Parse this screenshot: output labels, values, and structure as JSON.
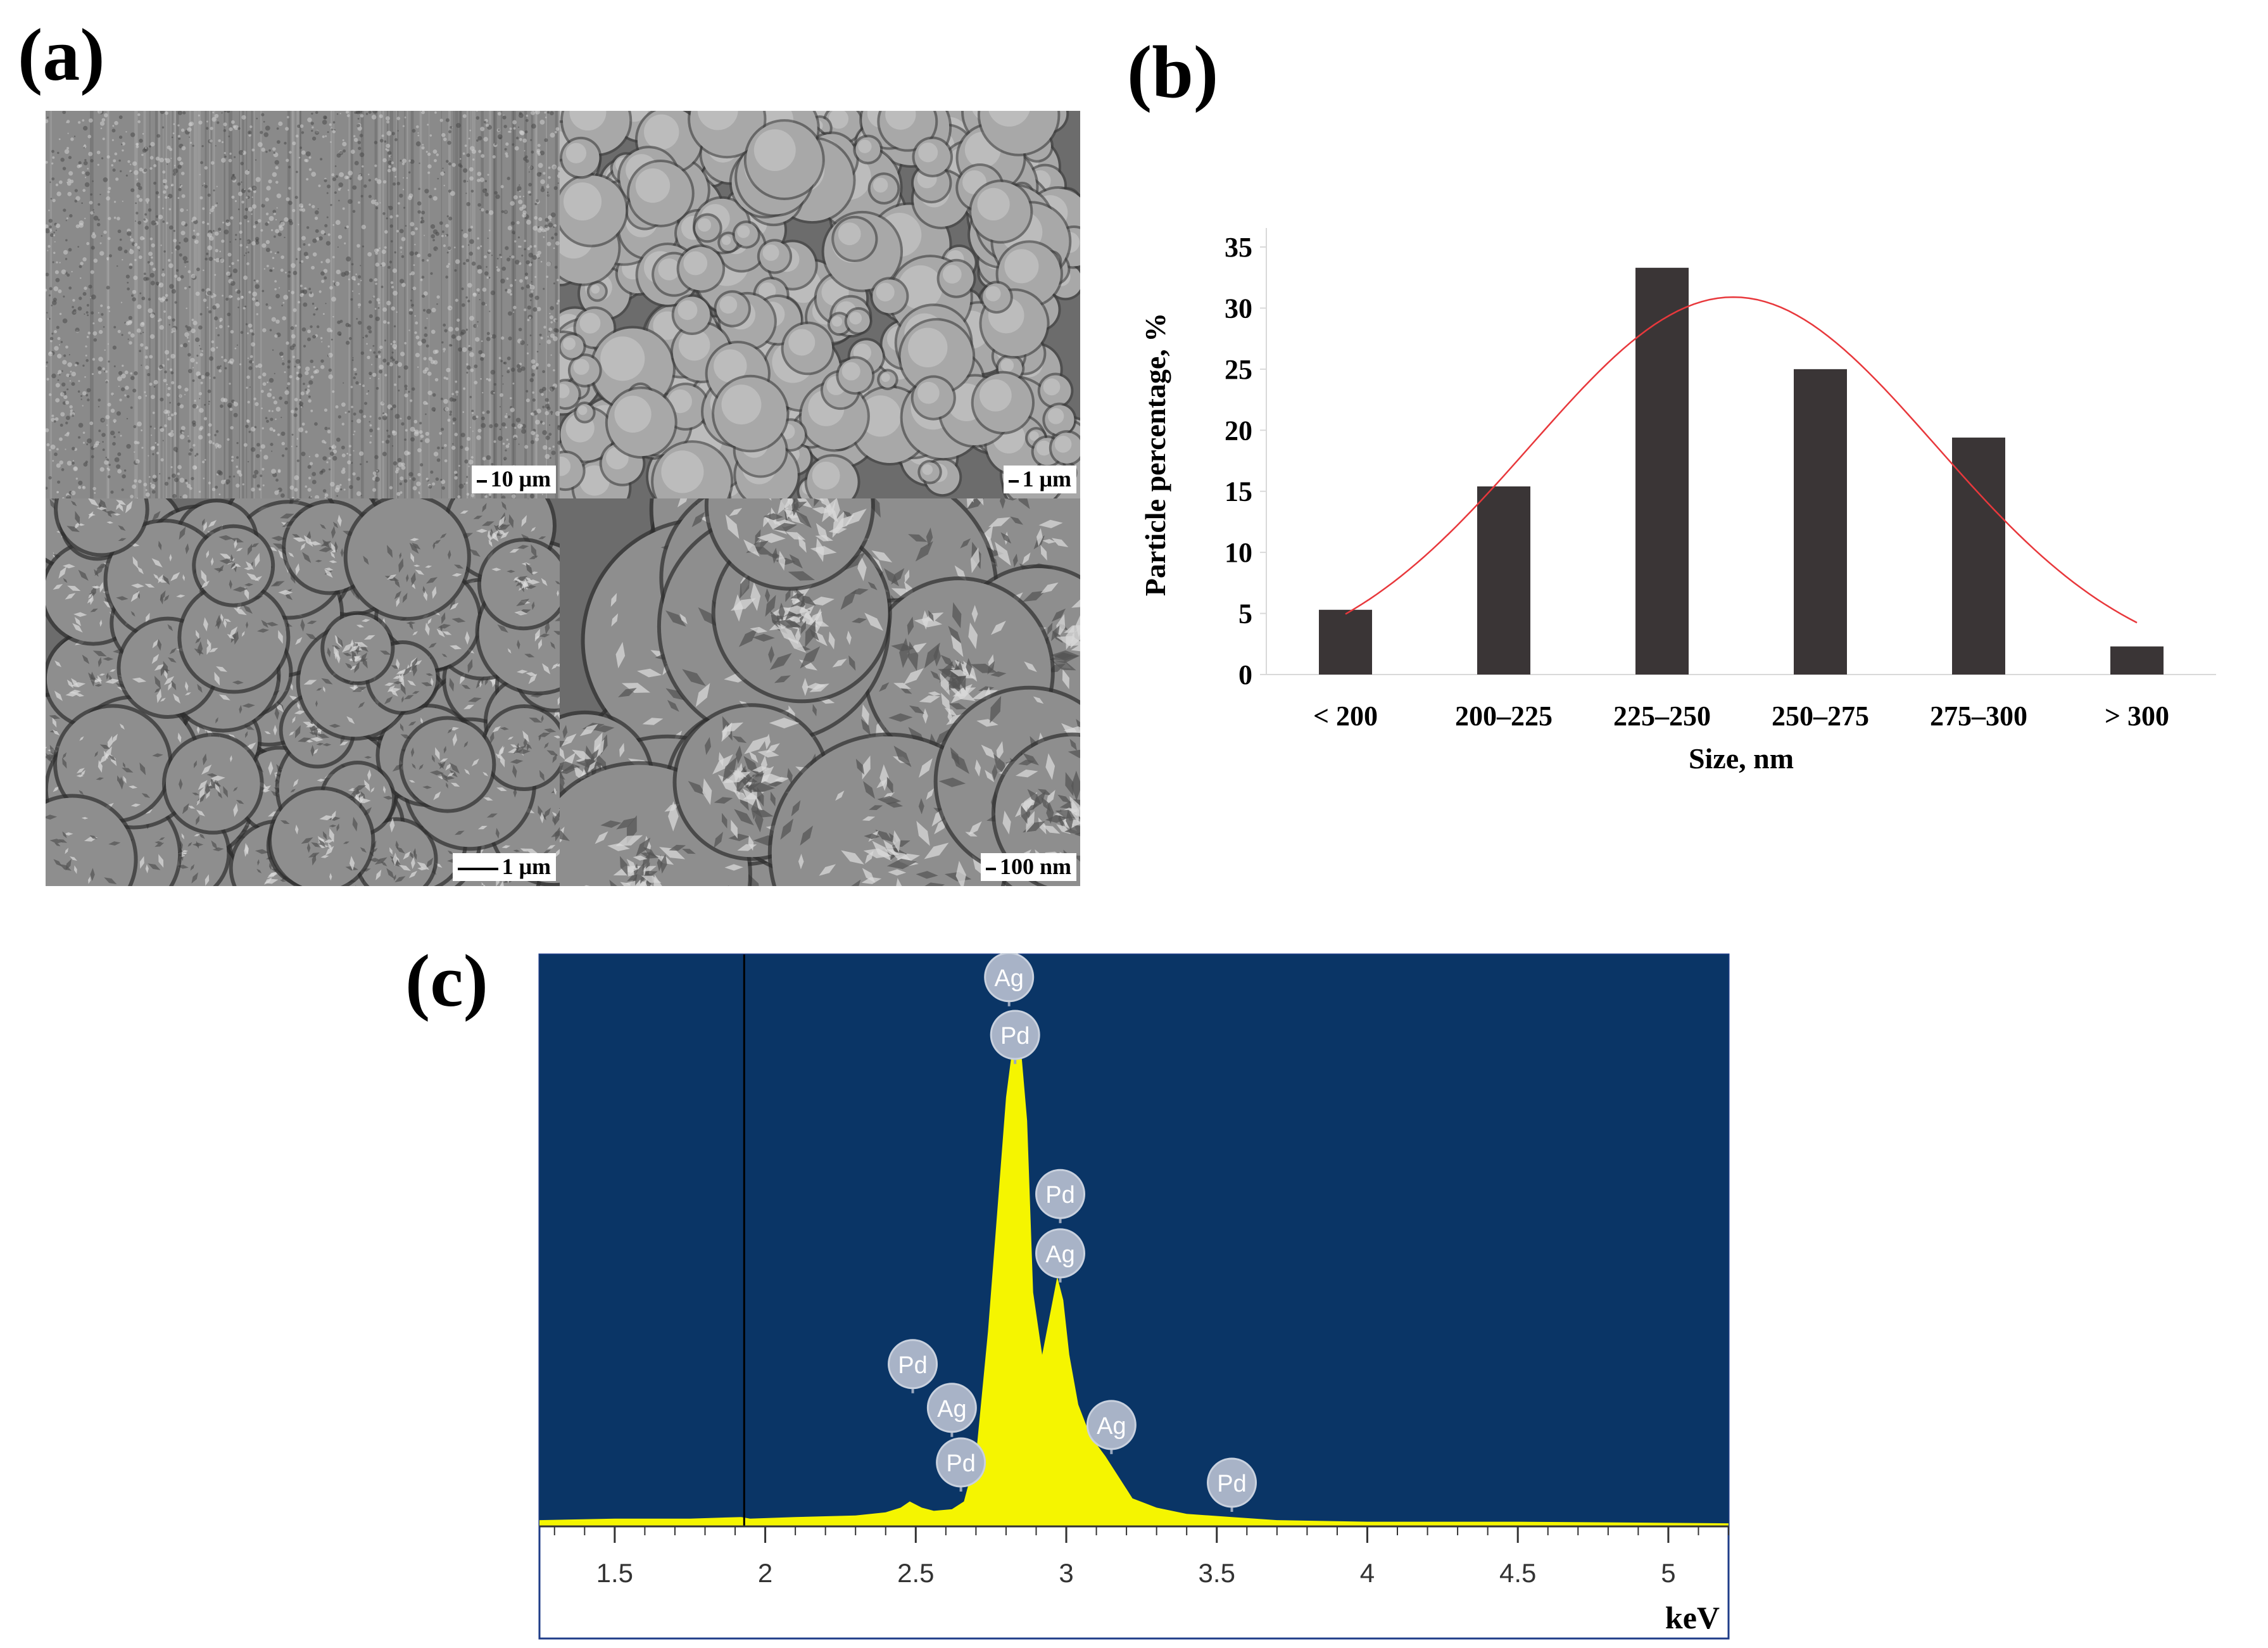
{
  "panels": {
    "a": "(a)",
    "b": "(b)",
    "c": "(c)"
  },
  "sem_images": [
    {
      "name": "sem-low-magnification",
      "scale_label": "10 μm",
      "texture": "striated"
    },
    {
      "name": "sem-medium-magnification",
      "scale_label": "1 μm",
      "texture": "nodular"
    },
    {
      "name": "sem-high-magnification",
      "scale_label": "1 μm",
      "texture": "flowers"
    },
    {
      "name": "sem-highest-magnification",
      "scale_label": "100 nm",
      "texture": "flowers-large"
    }
  ],
  "chart_data": [
    {
      "type": "bar",
      "panel": "b",
      "categories": [
        "< 200",
        "200–225",
        "225–250",
        "250–275",
        "275–300",
        "> 300"
      ],
      "values": [
        5.3,
        15.4,
        33.3,
        25.0,
        19.4,
        2.3
      ],
      "bar_color": "#3a3536",
      "fit_curve": {
        "color": "#e8383c",
        "x": [
          0,
          5
        ],
        "shape": "gaussian",
        "peak": 30.9,
        "peak_at": 2.45,
        "sigma": 1.28
      },
      "xlabel": "Size, nm",
      "ylabel": "Particle percentage, %",
      "ylim": [
        0,
        35
      ],
      "yticks": [
        0,
        5,
        10,
        15,
        20,
        25,
        30,
        35
      ]
    },
    {
      "type": "area",
      "panel": "c",
      "background": "#0a3566",
      "fill_color": "#f5f500",
      "xlabel": "keV",
      "xlim": [
        1.25,
        5.2
      ],
      "xticks": [
        "1.5",
        "2",
        "2.5",
        "3",
        "3.5",
        "4",
        "4.5",
        "5"
      ],
      "xtick_values": [
        1.5,
        2,
        2.5,
        3,
        3.5,
        4,
        4.5,
        5
      ],
      "marker_line_kev": 1.93,
      "spectrum": {
        "x": [
          1.25,
          1.5,
          1.75,
          1.92,
          1.95,
          2.1,
          2.3,
          2.4,
          2.45,
          2.48,
          2.52,
          2.56,
          2.62,
          2.66,
          2.7,
          2.74,
          2.77,
          2.8,
          2.83,
          2.85,
          2.87,
          2.89,
          2.92,
          2.95,
          2.97,
          2.99,
          3.01,
          3.04,
          3.08,
          3.13,
          3.18,
          3.22,
          3.3,
          3.4,
          3.55,
          3.7,
          4.0,
          4.5,
          5.2
        ],
        "y": [
          4,
          5,
          5,
          6,
          5,
          6,
          7,
          9,
          12,
          16,
          12,
          10,
          11,
          16,
          45,
          125,
          200,
          275,
          320,
          305,
          260,
          150,
          110,
          140,
          160,
          145,
          110,
          78,
          58,
          45,
          30,
          18,
          12,
          8,
          6,
          4,
          3,
          3,
          2
        ]
      },
      "ymax": 330,
      "peak_labels": [
        {
          "label": "Ag",
          "x": 2.81,
          "y": 352
        },
        {
          "label": "Pd",
          "x": 2.83,
          "y": 315
        },
        {
          "label": "Pd",
          "x": 2.98,
          "y": 213
        },
        {
          "label": "Ag",
          "x": 2.98,
          "y": 175
        },
        {
          "label": "Pd",
          "x": 2.49,
          "y": 104
        },
        {
          "label": "Ag",
          "x": 2.62,
          "y": 76
        },
        {
          "label": "Pd",
          "x": 2.65,
          "y": 41
        },
        {
          "label": "Ag",
          "x": 3.15,
          "y": 65
        },
        {
          "label": "Pd",
          "x": 3.55,
          "y": 28
        }
      ]
    }
  ]
}
